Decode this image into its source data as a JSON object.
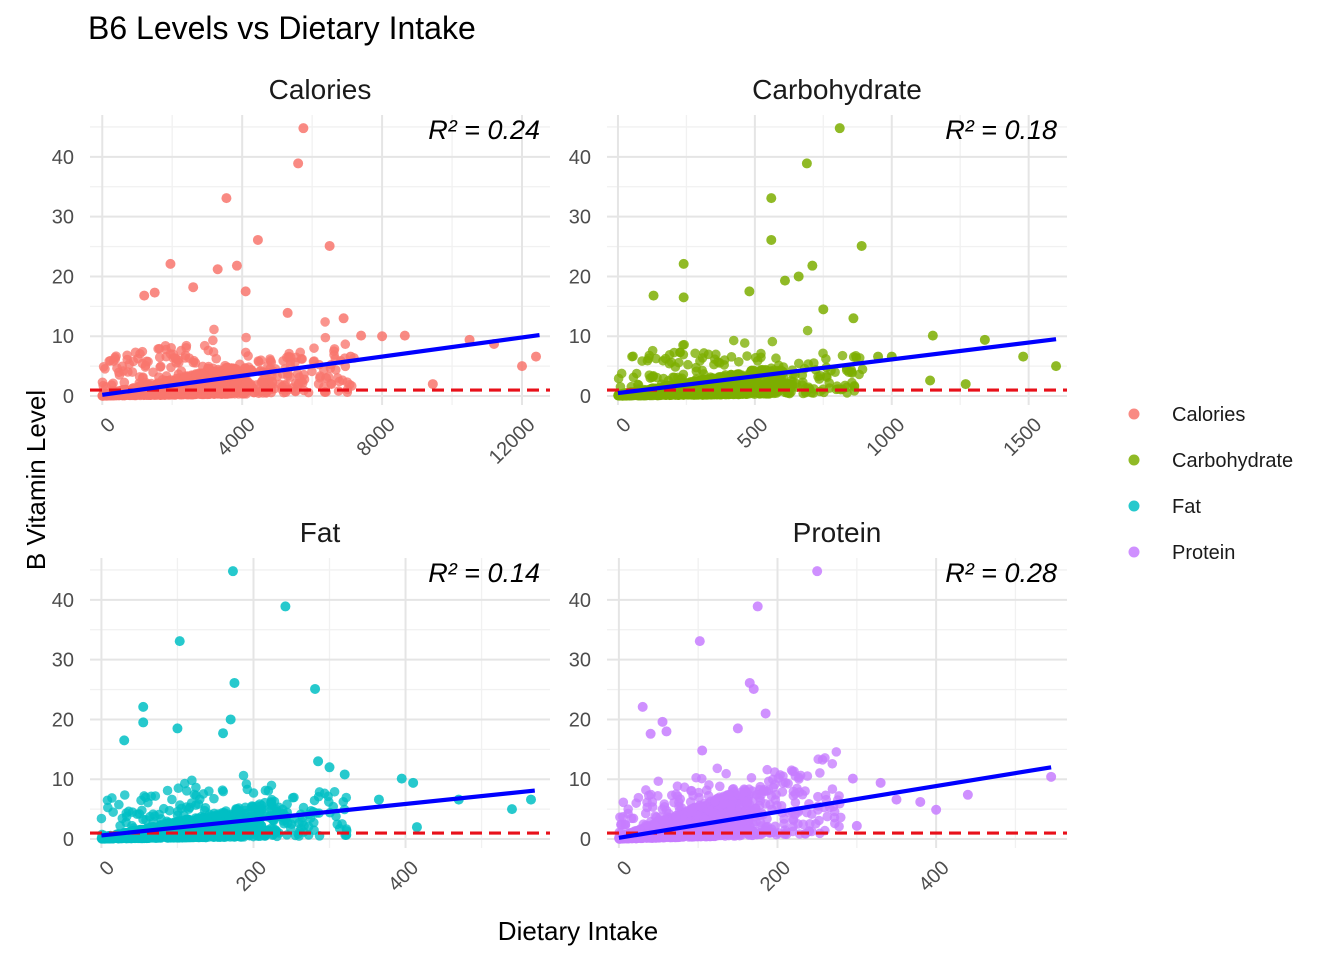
{
  "chart_data": {
    "type": "scatter",
    "title": "B6 Levels vs Dietary Intake",
    "xlabel": "Dietary Intake",
    "ylabel": "B Vitamin Level",
    "reference_line": {
      "y": 1,
      "color": "#e8101a",
      "style": "dashed"
    },
    "trend_color": "#0000ff",
    "legend": {
      "placement": "right",
      "entries": [
        {
          "name": "Calories",
          "color": "#f8766d"
        },
        {
          "name": "Carbohydrate",
          "color": "#7cae00"
        },
        {
          "name": "Fat",
          "color": "#00bfc4"
        },
        {
          "name": "Protein",
          "color": "#c77cff"
        }
      ]
    },
    "panels": [
      {
        "name": "Calories",
        "color": "#f8766d",
        "r2_label": "R² = 0.24",
        "xlim": [
          -350,
          12800
        ],
        "ylim": [
          -1.5,
          47
        ],
        "xticks": [
          0,
          4000,
          8000,
          12000
        ],
        "xtick_labels": [
          "0",
          "4000",
          "8000",
          "12000"
        ],
        "yticks": [
          0,
          10,
          20,
          30,
          40
        ],
        "ytick_labels": [
          "0",
          "10",
          "20",
          "30",
          "40"
        ],
        "trend": {
          "x": [
            0,
            12500
          ],
          "y": [
            0.2,
            10.2
          ]
        },
        "cloud": {
          "n": 1400,
          "xmax": 7200,
          "center": 2100,
          "spread": 1300,
          "slope": 0.00085
        },
        "points": [
          [
            5750,
            44.8
          ],
          [
            5600,
            38.9
          ],
          [
            3550,
            33.1
          ],
          [
            4450,
            26.1
          ],
          [
            6500,
            25.1
          ],
          [
            1950,
            22.1
          ],
          [
            3300,
            21.2
          ],
          [
            3850,
            21.8
          ],
          [
            2600,
            18.2
          ],
          [
            1500,
            17.3
          ],
          [
            1200,
            16.8
          ],
          [
            4100,
            17.5
          ],
          [
            5300,
            13.9
          ],
          [
            6900,
            13.0
          ],
          [
            7400,
            10.1
          ],
          [
            8000,
            10.0
          ],
          [
            8650,
            10.1
          ],
          [
            10500,
            9.4
          ],
          [
            11200,
            8.7
          ],
          [
            12000,
            5.0
          ],
          [
            12400,
            6.6
          ],
          [
            9450,
            2.0
          ],
          [
            7100,
            6.6
          ],
          [
            6400,
            3.0
          ]
        ]
      },
      {
        "name": "Carbohydrate",
        "color": "#7cae00",
        "r2_label": "R² = 0.18",
        "xlim": [
          -40,
          1640
        ],
        "ylim": [
          -1.5,
          47
        ],
        "xticks": [
          0,
          500,
          1000,
          1500
        ],
        "xtick_labels": [
          "0",
          "500",
          "1000",
          "1500"
        ],
        "yticks": [
          0,
          10,
          20,
          30,
          40
        ],
        "ytick_labels": [
          "0",
          "10",
          "20",
          "30",
          "40"
        ],
        "trend": {
          "x": [
            0,
            1600
          ],
          "y": [
            0.5,
            9.5
          ]
        },
        "cloud": {
          "n": 1400,
          "xmax": 900,
          "center": 260,
          "spread": 170,
          "slope": 0.0055
        },
        "points": [
          [
            810,
            44.8
          ],
          [
            690,
            38.9
          ],
          [
            560,
            33.1
          ],
          [
            560,
            26.1
          ],
          [
            890,
            25.1
          ],
          [
            240,
            22.1
          ],
          [
            710,
            21.8
          ],
          [
            660,
            20.0
          ],
          [
            610,
            19.3
          ],
          [
            1150,
            10.1
          ],
          [
            1340,
            9.4
          ],
          [
            1480,
            6.6
          ],
          [
            1600,
            5.0
          ],
          [
            1140,
            2.6
          ],
          [
            1270,
            2.0
          ],
          [
            950,
            6.6
          ],
          [
            1000,
            6.6
          ],
          [
            750,
            14.5
          ],
          [
            240,
            16.5
          ],
          [
            130,
            16.8
          ],
          [
            860,
            13.0
          ],
          [
            480,
            17.5
          ]
        ]
      },
      {
        "name": "Fat",
        "color": "#00bfc4",
        "r2_label": "R² = 0.14",
        "xlim": [
          -15,
          590
        ],
        "ylim": [
          -1.5,
          47
        ],
        "xticks": [
          0,
          200,
          400
        ],
        "xtick_labels": [
          "0",
          "200",
          "400"
        ],
        "yticks": [
          0,
          10,
          20,
          30,
          40
        ],
        "ytick_labels": [
          "0",
          "10",
          "20",
          "30",
          "40"
        ],
        "trend": {
          "x": [
            0,
            570
          ],
          "y": [
            0.6,
            8.1
          ]
        },
        "cloud": {
          "n": 1400,
          "xmax": 330,
          "center": 95,
          "spread": 65,
          "slope": 0.018
        },
        "points": [
          [
            173,
            44.8
          ],
          [
            242,
            38.9
          ],
          [
            103,
            33.1
          ],
          [
            175,
            26.1
          ],
          [
            281,
            25.1
          ],
          [
            55,
            22.1
          ],
          [
            170,
            20.0
          ],
          [
            55,
            19.5
          ],
          [
            100,
            18.5
          ],
          [
            160,
            17.7
          ],
          [
            30,
            16.5
          ],
          [
            395,
            10.1
          ],
          [
            410,
            9.4
          ],
          [
            470,
            6.6
          ],
          [
            540,
            5.0
          ],
          [
            565,
            6.6
          ],
          [
            415,
            2.0
          ],
          [
            365,
            6.6
          ],
          [
            285,
            13.0
          ],
          [
            300,
            12.0
          ],
          [
            320,
            10.8
          ]
        ]
      },
      {
        "name": "Protein",
        "color": "#c77cff",
        "r2_label": "R² = 0.28",
        "xlim": [
          -15,
          565
        ],
        "ylim": [
          -1.5,
          47
        ],
        "xticks": [
          0,
          200,
          400
        ],
        "xtick_labels": [
          "0",
          "200",
          "400"
        ],
        "yticks": [
          0,
          10,
          20,
          30,
          40
        ],
        "ytick_labels": [
          "0",
          "10",
          "20",
          "30",
          "40"
        ],
        "trend": {
          "x": [
            0,
            545
          ],
          "y": [
            0.2,
            12.0
          ]
        },
        "cloud": {
          "n": 1400,
          "xmax": 280,
          "center": 80,
          "spread": 55,
          "slope": 0.035
        },
        "points": [
          [
            250,
            44.8
          ],
          [
            175,
            38.9
          ],
          [
            102,
            33.1
          ],
          [
            165,
            26.1
          ],
          [
            170,
            25.1
          ],
          [
            30,
            22.1
          ],
          [
            185,
            21.0
          ],
          [
            55,
            19.6
          ],
          [
            60,
            18.0
          ],
          [
            40,
            17.6
          ],
          [
            150,
            18.5
          ],
          [
            105,
            14.8
          ],
          [
            545,
            10.4
          ],
          [
            440,
            7.4
          ],
          [
            400,
            4.9
          ],
          [
            380,
            6.2
          ],
          [
            350,
            6.6
          ],
          [
            300,
            2.2
          ],
          [
            330,
            9.4
          ],
          [
            295,
            10.1
          ]
        ]
      }
    ]
  }
}
